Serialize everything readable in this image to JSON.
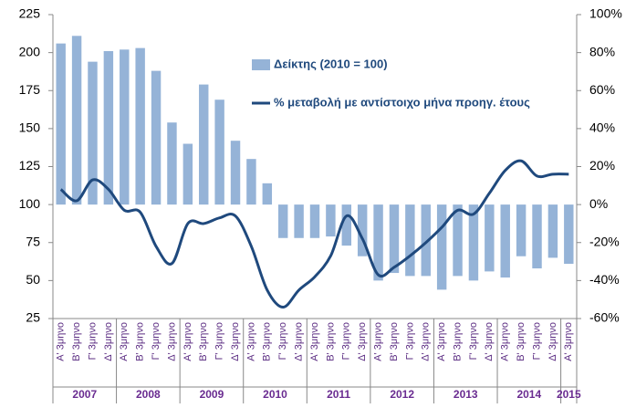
{
  "chart_data": {
    "type": "bar_line",
    "categories": [
      "Α' 3μηνο",
      "Β' 3μηνο",
      "Γ' 3μηνο",
      "Δ' 3μηνο",
      "Α' 3μηνο",
      "Β' 3μηνο",
      "Γ' 3μηνο",
      "Δ' 3μηνο",
      "Α' 3μηνο",
      "Β' 3μηνο",
      "Γ' 3μηνο",
      "Δ' 3μηνο",
      "Α' 3μηνο",
      "Β' 3μηνο",
      "Γ' 3μηνο",
      "Δ' 3μηνο",
      "Α' 3μηνο",
      "Β' 3μηνο",
      "Γ' 3μηνο",
      "Δ' 3μηνο",
      "Α' 3μηνο",
      "Β' 3μηνο",
      "Γ' 3μηνο",
      "Δ' 3μηνο",
      "Α' 3μηνο",
      "Β' 3μηνο",
      "Γ' 3μηνο",
      "Δ' 3μηνο",
      "Α' 3μηνο",
      "Β' 3μηνο",
      "Γ' 3μηνο",
      "Δ' 3μηνο",
      "Α' 3μηνο"
    ],
    "years": [
      "2007",
      "2008",
      "2009",
      "2010",
      "2011",
      "2012",
      "2013",
      "2014",
      "2015"
    ],
    "series": [
      {
        "name": "Δείκτης (2010 = 100)",
        "type": "bar",
        "color": "#95b3d7",
        "values": [
          206,
          211,
          194,
          201,
          202,
          203,
          188,
          154,
          140,
          179,
          169,
          142,
          130,
          114,
          78,
          78,
          78,
          79,
          73,
          66,
          50,
          55,
          53,
          53,
          44,
          53,
          50,
          56,
          52,
          66,
          58,
          65,
          61
        ]
      },
      {
        "name": "% μεταβολή με αντίστοιχο μήνα προηγ. έτους",
        "type": "line",
        "axis": "y2",
        "color": "#1f497d",
        "values": [
          8,
          2,
          13,
          8,
          -3,
          -4,
          -22,
          -31,
          -10,
          -10,
          -7,
          -6,
          -22,
          -45,
          -54,
          -45,
          -38,
          -27,
          -6,
          -18,
          -37,
          -33,
          -27,
          -20,
          -12,
          -3,
          -5,
          6,
          18,
          23,
          15,
          16,
          16
        ]
      }
    ],
    "bar_baseline": 100,
    "ylim": [
      25,
      225
    ],
    "yticks": [
      25,
      50,
      75,
      100,
      125,
      150,
      175,
      200,
      225
    ],
    "y2lim": [
      -60,
      100
    ],
    "y2ticks": [
      {
        "value": -60,
        "label": "-60%"
      },
      {
        "value": -40,
        "label": "-40%"
      },
      {
        "value": -20,
        "label": "-20%"
      },
      {
        "value": 0,
        "label": "0%"
      },
      {
        "value": 20,
        "label": "20%"
      },
      {
        "value": 40,
        "label": "40%"
      },
      {
        "value": 60,
        "label": "60%"
      },
      {
        "value": 80,
        "label": "80%"
      },
      {
        "value": 100,
        "label": "100%"
      }
    ]
  }
}
